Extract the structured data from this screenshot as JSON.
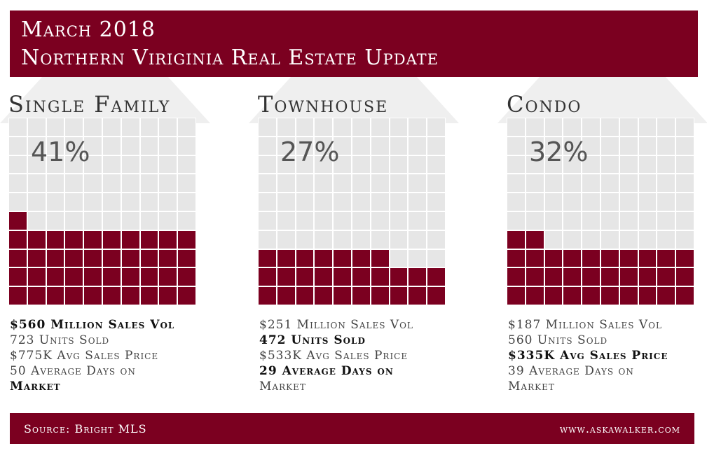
{
  "header": {
    "line1": "March 2018",
    "line2": "Northern Viriginia Real Estate Update"
  },
  "panels": [
    {
      "title": "Single Family",
      "percent": "41%",
      "filled_cells": 41,
      "stats": [
        {
          "text": "$560 Million Sales Vol",
          "bold": true
        },
        {
          "text": "723 Units Sold",
          "bold": false
        },
        {
          "text": "$775K Avg Sales Price",
          "bold": false
        },
        {
          "text": "50 Average Days on",
          "bold": false
        },
        {
          "text": "Market",
          "bold": true
        }
      ]
    },
    {
      "title": "Townhouse",
      "percent": "27%",
      "filled_cells": 27,
      "stats": [
        {
          "text": "$251 Million Sales Vol",
          "bold": false
        },
        {
          "text": "472 Units Sold",
          "bold": true
        },
        {
          "text": "$533K Avg Sales Price",
          "bold": false
        },
        {
          "text": "29 Average Days on",
          "bold": true
        },
        {
          "text": "Market",
          "bold": false
        }
      ]
    },
    {
      "title": "Condo",
      "percent": "32%",
      "filled_cells": 32,
      "stats": [
        {
          "text": "$187 Million Sales Vol",
          "bold": false
        },
        {
          "text": "560 Units Sold",
          "bold": false
        },
        {
          "text": "$335K Avg Sales Price",
          "bold": true
        },
        {
          "text": "39 Average Days on",
          "bold": false
        },
        {
          "text": "Market",
          "bold": false
        }
      ]
    }
  ],
  "footer": {
    "source": "Source: Bright MLS",
    "website": "www.askawalker.com"
  },
  "colors": {
    "accent": "#7b0020",
    "grid_empty": "#e6e6e6",
    "roof": "#efefef"
  }
}
